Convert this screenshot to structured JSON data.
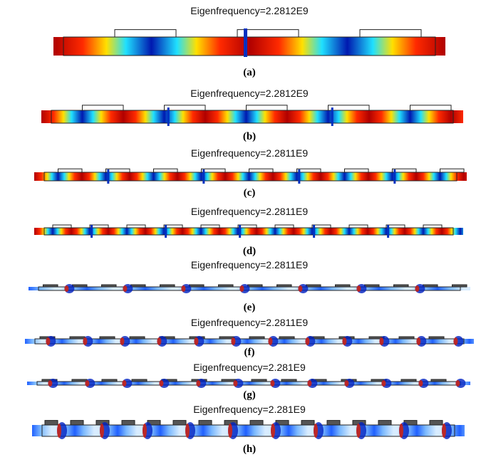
{
  "panels": [
    {
      "title": "Eigenfrequency=2.2812E9",
      "label": "(a)"
    },
    {
      "title": "Eigenfrequency=2.2812E9",
      "label": "(b)"
    },
    {
      "title": "Eigenfrequency=2.2811E9",
      "label": "(c)"
    },
    {
      "title": "Eigenfrequency=2.2811E9",
      "label": "(d)"
    },
    {
      "title": "Eigenfrequency=2.2811E9",
      "label": "(e)"
    },
    {
      "title": "Eigenfrequency=2.2811E9",
      "label": "(f)"
    },
    {
      "title": "Eigenfrequency=2.281E9",
      "label": "(g)"
    },
    {
      "title": "Eigenfrequency=2.281E9",
      "label": "(h)"
    }
  ]
}
